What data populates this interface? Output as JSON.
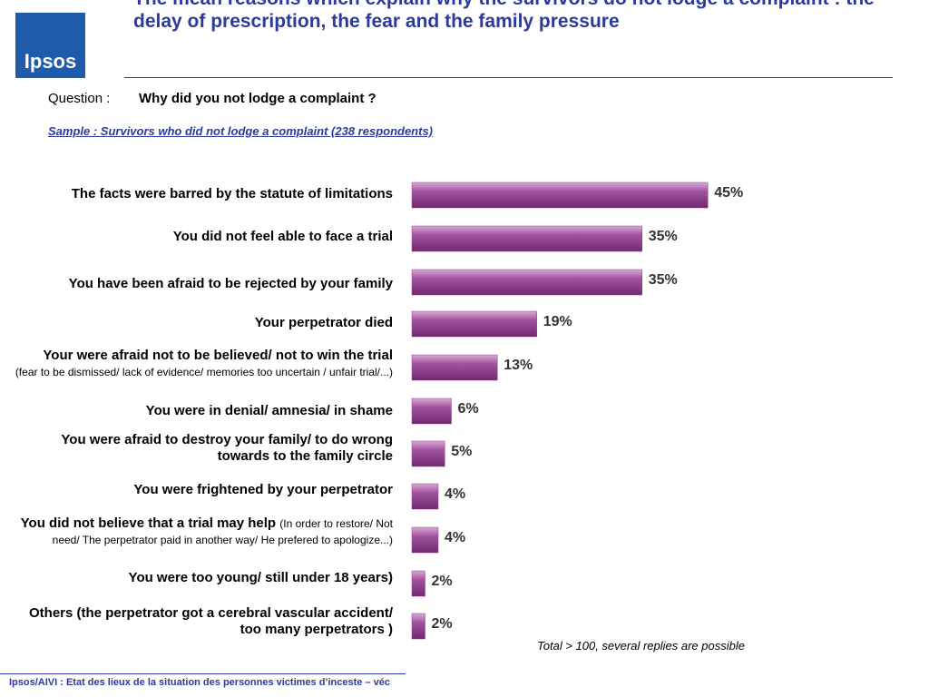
{
  "logo": "Ipsos",
  "header": {
    "title": "The mean reasons which explain why the survivors do not lodge a complaint : the delay of prescription, the fear and the family pressure"
  },
  "question": {
    "label": "Question :",
    "text": "Why did you not lodge a complaint ?"
  },
  "sample": "Sample : Survivors who did not lodge a complaint (238 respondents)",
  "note": "Total > 100, several replies are possible",
  "footer": "Ipsos/AIVI : Etat des lieux de la situation des personnes victimes d’inceste – véc",
  "chart_data": {
    "type": "bar",
    "orientation": "horizontal",
    "color": "#93458f",
    "categories": [
      "The facts were barred by the statute of limitations",
      "You did not feel able to face a trial",
      "You have been afraid to be rejected by your family",
      "Your perpetrator died",
      "Your were afraid not to be believed/ not to win the trial",
      "You were in denial/ amnesia/ in shame",
      "You were afraid to destroy your family/ to do wrong towards to the family circle",
      "You were frightened by your perpetrator",
      "You did not believe that a trial may help",
      "You were too young/ still under 18 years)",
      "Others (the perpetrator got a cerebral vascular accident/ too many perpetrators )"
    ],
    "category_notes": [
      null,
      null,
      null,
      null,
      "(fear to be dismissed/ lack of evidence/ memories too uncertain / unfair trial/...)",
      null,
      null,
      null,
      "(In order to restore/ Not need/ The perpetrator paid in another way/ He prefered to apologize...)",
      null,
      null
    ],
    "values": [
      45,
      35,
      35,
      19,
      13,
      6,
      5,
      4,
      4,
      2,
      2
    ],
    "value_labels": [
      "45%",
      "35%",
      "35%",
      "19%",
      "13%",
      "6%",
      "5%",
      "4%",
      "4%",
      "2%",
      "2%"
    ]
  }
}
